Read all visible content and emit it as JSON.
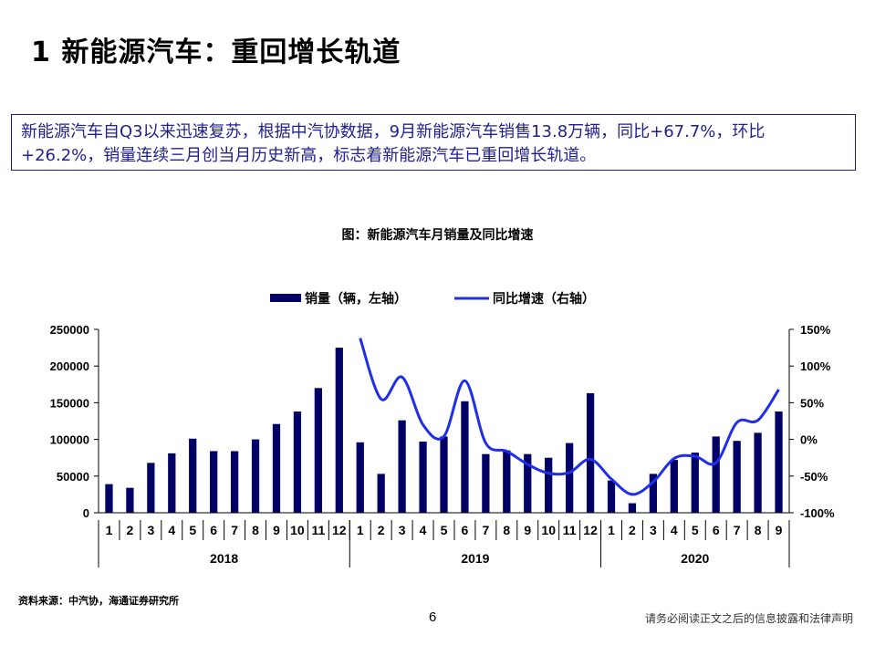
{
  "page": {
    "title": "1 新能源汽车：重回增长轨道",
    "summary": "新能源汽车自Q3以来迅速复苏，根据中汽协数据，9月新能源汽车销售13.8万辆，同比+67.7%，环比+26.2%，销量连续三月创当月历史新高，标志着新能源汽车已重回增长轨道。",
    "chart_caption": "图：新能源汽车月销量及同比增速",
    "source": "资料来源：中汽协，海通证券研究所",
    "page_number": "6",
    "disclaimer": "请务必阅读正文之后的信息披露和法律声明"
  },
  "chart_data": {
    "type": "bar",
    "title": "图：新能源汽车月销量及同比增速",
    "legend_position": "top-center",
    "categories": [
      "1",
      "2",
      "3",
      "4",
      "5",
      "6",
      "7",
      "8",
      "9",
      "10",
      "11",
      "12",
      "1",
      "2",
      "3",
      "4",
      "5",
      "6",
      "7",
      "8",
      "9",
      "10",
      "11",
      "12",
      "1",
      "2",
      "3",
      "4",
      "5",
      "6",
      "7",
      "8",
      "9"
    ],
    "groups": [
      {
        "label": "2018",
        "count": 12
      },
      {
        "label": "2019",
        "count": 12
      },
      {
        "label": "2020",
        "count": 9
      }
    ],
    "y_left": {
      "min": 0,
      "max": 250000,
      "ticks": [
        "0",
        "50000",
        "100000",
        "150000",
        "200000",
        "250000"
      ]
    },
    "y_right": {
      "min": -100,
      "max": 150,
      "ticks": [
        "-100%",
        "-50%",
        "0%",
        "50%",
        "100%",
        "150%"
      ]
    },
    "series": [
      {
        "name": "销量（辆，左轴）",
        "type": "bar",
        "axis": "left",
        "color": "#000066",
        "values": [
          39000,
          34000,
          68000,
          81000,
          101000,
          84000,
          84000,
          100000,
          121000,
          138000,
          170000,
          225000,
          96000,
          53000,
          126000,
          97000,
          104000,
          152000,
          80000,
          85000,
          80000,
          75000,
          95000,
          163000,
          44000,
          13000,
          53000,
          72000,
          82000,
          104000,
          98000,
          109000,
          138000
        ]
      },
      {
        "name": "同比增速（右轴）",
        "type": "line",
        "axis": "right",
        "color": "#1f2ee8",
        "values": [
          null,
          null,
          null,
          null,
          null,
          null,
          null,
          null,
          null,
          null,
          null,
          null,
          138,
          55,
          85,
          20,
          4,
          80,
          -5,
          -16,
          -34,
          -46,
          -45,
          -27,
          -54,
          -75,
          -58,
          -26,
          -23,
          -32,
          23,
          26,
          68
        ]
      }
    ]
  }
}
